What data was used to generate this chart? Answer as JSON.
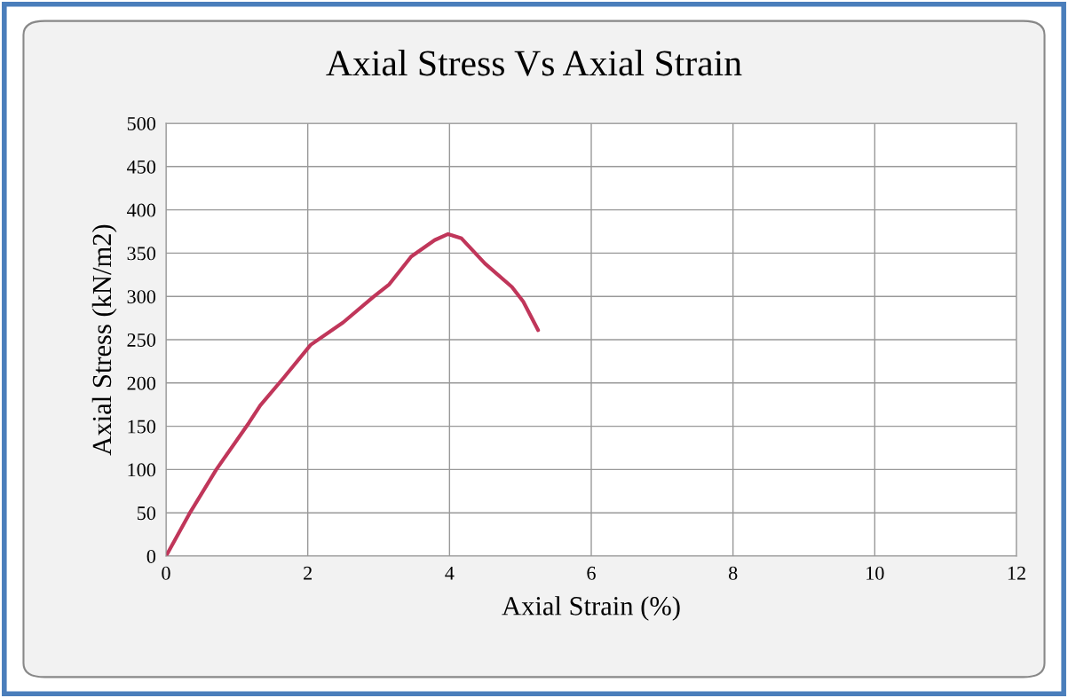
{
  "chart_data": {
    "type": "line",
    "title": "Axial Stress Vs Axial Strain",
    "xlabel": "Axial Strain (%)",
    "ylabel": "Axial Stress (kN/m2)",
    "xlim": [
      0,
      12
    ],
    "xticks": [
      0,
      2,
      4,
      6,
      8,
      10,
      12
    ],
    "ylim": [
      0,
      500
    ],
    "yticks": [
      0,
      50,
      100,
      150,
      200,
      250,
      300,
      350,
      400,
      450,
      500
    ],
    "grid": true,
    "series": [
      {
        "color": "#c0365a",
        "x": [
          0,
          0.33,
          0.71,
          1.17,
          1.33,
          1.67,
          2.04,
          2.5,
          2.92,
          3.15,
          3.46,
          3.79,
          3.98,
          4.17,
          4.5,
          4.88,
          5.04,
          5.25
        ],
        "values": [
          0,
          49,
          100,
          154,
          174,
          207,
          244,
          270,
          299,
          314,
          346,
          365,
          372,
          367,
          338,
          311,
          294,
          261
        ]
      }
    ]
  }
}
